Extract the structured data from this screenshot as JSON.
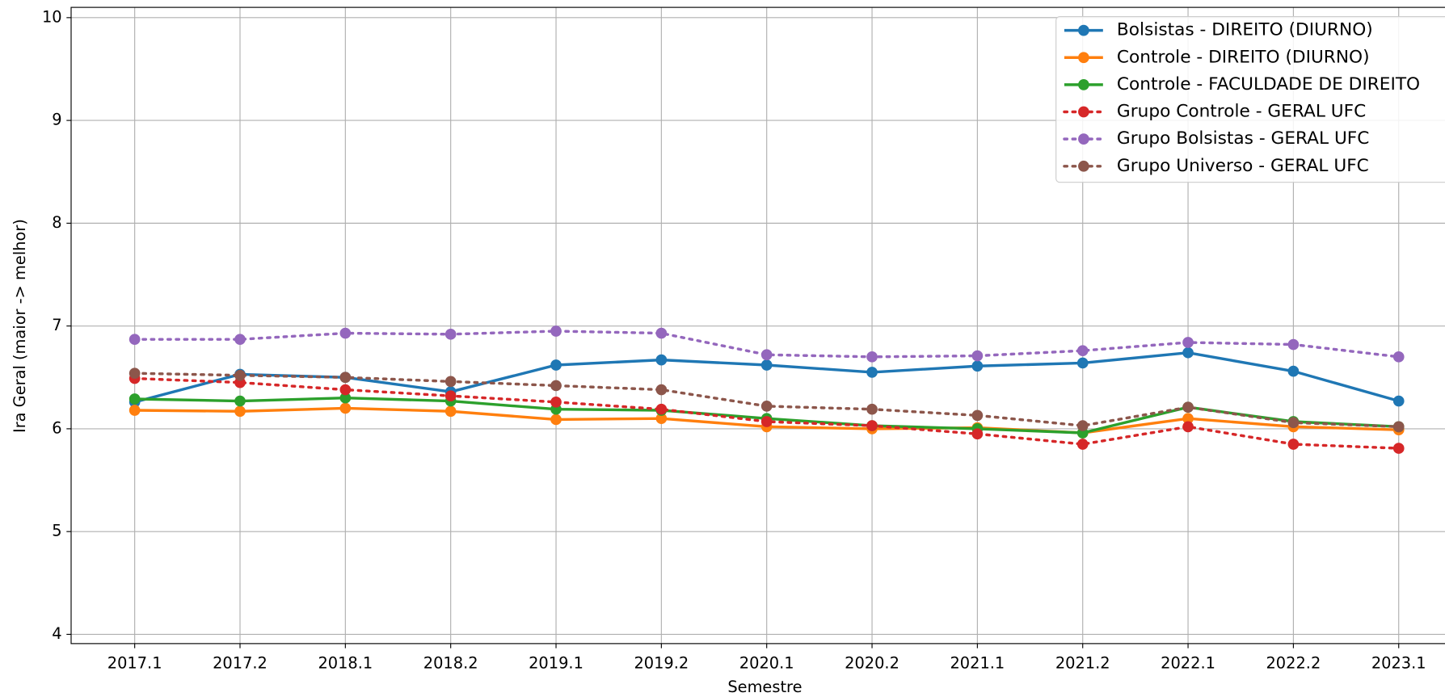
{
  "chart_data": {
    "type": "line",
    "x_label": "Semestre",
    "y_label": "Ira Geral (maior -> melhor)",
    "categories": [
      "2017.1",
      "2017.2",
      "2018.1",
      "2018.2",
      "2019.1",
      "2019.2",
      "2020.1",
      "2020.2",
      "2021.1",
      "2021.2",
      "2022.1",
      "2022.2",
      "2023.1"
    ],
    "ylim": [
      3.91,
      10.1
    ],
    "yticks": [
      4,
      5,
      6,
      7,
      8,
      9,
      10
    ],
    "grid": true,
    "legend": "upper right",
    "series": [
      {
        "name": "Bolsistas - DIREITO (DIURNO)",
        "color": "#1f77b4",
        "linestyle": "solid",
        "values": [
          6.26,
          6.53,
          6.5,
          6.36,
          6.62,
          6.67,
          6.62,
          6.55,
          6.61,
          6.64,
          6.74,
          6.56,
          6.27
        ]
      },
      {
        "name": "Controle - DIREITO (DIURNO)",
        "color": "#ff7f0e",
        "linestyle": "solid",
        "values": [
          6.18,
          6.17,
          6.2,
          6.17,
          6.09,
          6.1,
          6.02,
          6.0,
          6.01,
          5.96,
          6.1,
          6.02,
          5.99
        ]
      },
      {
        "name": "Controle - FACULDADE DE DIREITO",
        "color": "#2ca02c",
        "linestyle": "solid",
        "values": [
          6.29,
          6.27,
          6.3,
          6.27,
          6.19,
          6.18,
          6.1,
          6.03,
          6.0,
          5.96,
          6.21,
          6.07,
          6.02
        ]
      },
      {
        "name": "Grupo Controle - GERAL UFC",
        "color": "#d62728",
        "linestyle": "dotted",
        "values": [
          6.49,
          6.45,
          6.38,
          6.32,
          6.26,
          6.19,
          6.07,
          6.03,
          5.95,
          5.85,
          6.02,
          5.85,
          5.81
        ]
      },
      {
        "name": "Grupo Bolsistas - GERAL UFC",
        "color": "#9467bd",
        "linestyle": "dotted",
        "values": [
          6.87,
          6.87,
          6.93,
          6.92,
          6.95,
          6.93,
          6.72,
          6.7,
          6.71,
          6.76,
          6.84,
          6.82,
          6.7
        ]
      },
      {
        "name": "Grupo Universo - GERAL UFC",
        "color": "#8c564b",
        "linestyle": "dotted",
        "values": [
          6.54,
          6.52,
          6.5,
          6.46,
          6.42,
          6.38,
          6.22,
          6.19,
          6.13,
          6.03,
          6.21,
          6.06,
          6.02
        ]
      }
    ]
  }
}
